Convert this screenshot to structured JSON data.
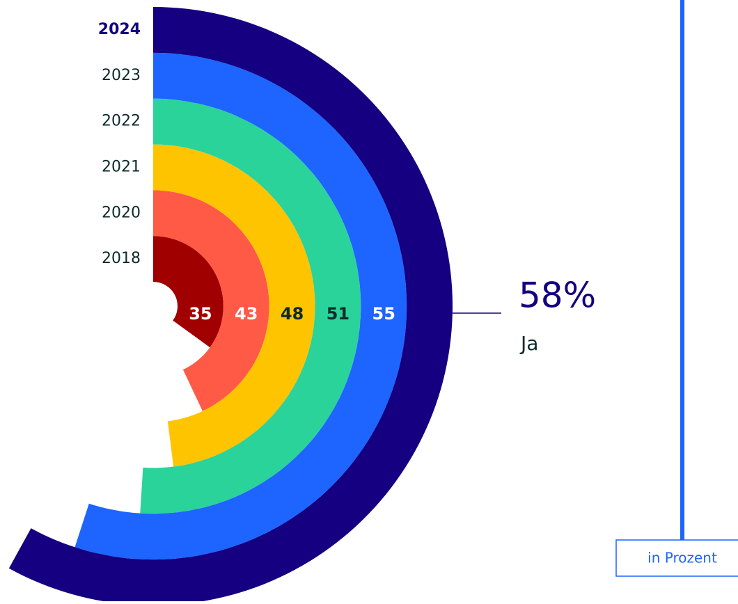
{
  "chart_data": {
    "type": "radial_bar",
    "categories": [
      "2024",
      "2023",
      "2022",
      "2021",
      "2020",
      "2018"
    ],
    "values": [
      58,
      55,
      51,
      48,
      43,
      35
    ],
    "value_labels": [
      "58%",
      "55",
      "51",
      "48",
      "43",
      "35"
    ],
    "colors": [
      "#140080",
      "#1e64ff",
      "#2ad39a",
      "#ffc400",
      "#ff5a46",
      "#a00000"
    ],
    "value_label_colors": [
      "#140080",
      "#ffffff",
      "#0f2a2a",
      "#0f2a2a",
      "#ffffff",
      "#ffffff"
    ],
    "annotation": "Ja",
    "note": "in Prozent"
  }
}
